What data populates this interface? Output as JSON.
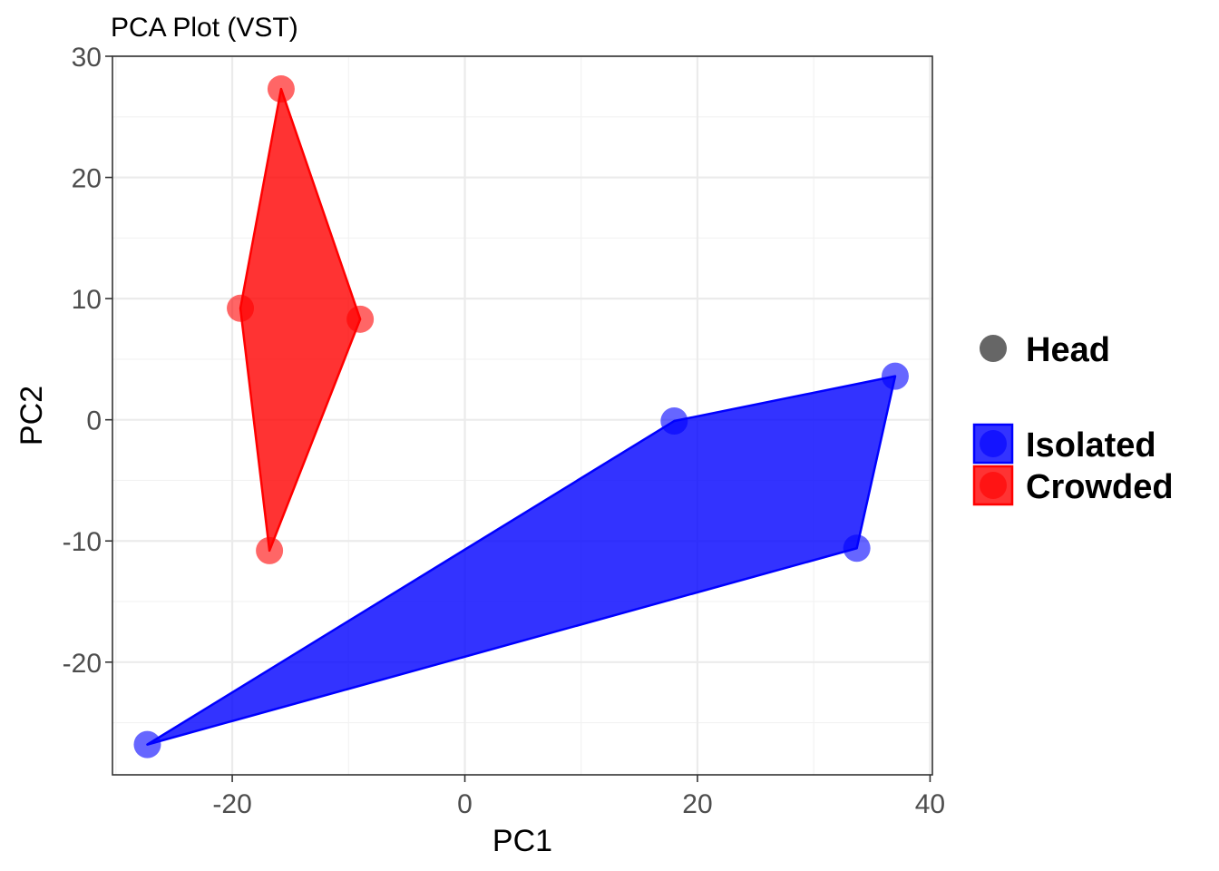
{
  "chart_data": {
    "type": "scatter",
    "title": "PCA Plot (VST)",
    "xlabel": "PC1",
    "ylabel": "PC2",
    "xlim": [
      -30.3,
      40.2
    ],
    "ylim": [
      -29.3,
      30.0
    ],
    "x_ticks": [
      -20,
      0,
      20,
      40
    ],
    "x_tick_labels": [
      "-20",
      "0",
      "20",
      "40"
    ],
    "y_ticks": [
      -20,
      -10,
      0,
      10,
      20,
      30
    ],
    "y_tick_labels": [
      "-20",
      "-10",
      "0",
      "10",
      "20",
      "30"
    ],
    "x_minor_ticks": [
      -30,
      -10,
      10,
      30
    ],
    "y_minor_ticks": [
      -25,
      -15,
      -5,
      5,
      15,
      25
    ],
    "grid": true,
    "legend_position": "right",
    "shape_legend": {
      "label": "Head",
      "color": "#666666"
    },
    "series": [
      {
        "name": "Isolated",
        "color": "#0000ff",
        "points": [
          {
            "x": -27.3,
            "y": -26.8
          },
          {
            "x": 18.0,
            "y": -0.1
          },
          {
            "x": 37.0,
            "y": 3.6
          },
          {
            "x": 33.7,
            "y": -10.6
          }
        ]
      },
      {
        "name": "Crowded",
        "color": "#ff0000",
        "points": [
          {
            "x": -15.8,
            "y": 27.3
          },
          {
            "x": -19.3,
            "y": 9.2
          },
          {
            "x": -9.0,
            "y": 8.3
          },
          {
            "x": -16.8,
            "y": -10.8
          }
        ]
      }
    ]
  }
}
